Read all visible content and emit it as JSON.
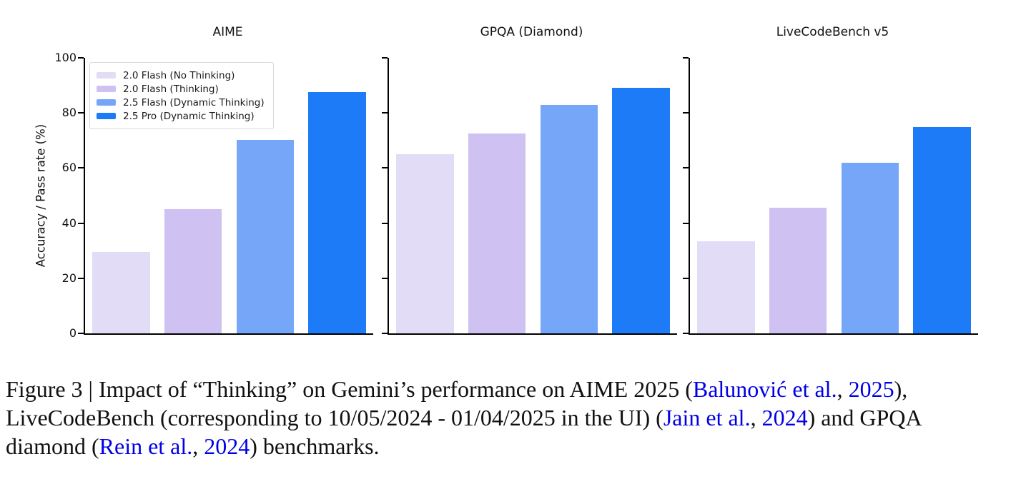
{
  "figure": {
    "ylabel": "Accuracy / Pass rate (%)",
    "legend": {
      "entries": [
        {
          "label": "2.0 Flash (No Thinking)",
          "color": "#e3dcf7"
        },
        {
          "label": "2.0 Flash (Thinking)",
          "color": "#cfc1f1"
        },
        {
          "label": "2.5 Flash (Dynamic Thinking)",
          "color": "#75a6f8"
        },
        {
          "label": "2.5 Pro (Dynamic Thinking)",
          "color": "#1e7bf7"
        }
      ]
    }
  },
  "chart_data": [
    {
      "type": "bar",
      "title": "AIME",
      "categories": [
        "2.0 Flash (No Thinking)",
        "2.0 Flash (Thinking)",
        "2.5 Flash (Dynamic Thinking)",
        "2.5 Pro (Dynamic Thinking)"
      ],
      "values": [
        29.5,
        45.0,
        70.2,
        87.5
      ],
      "colors": [
        "#e3dcf7",
        "#cfc1f1",
        "#75a6f8",
        "#1e7bf7"
      ],
      "xlabel": "",
      "ylabel": "Accuracy / Pass rate (%)",
      "ylim": [
        0,
        100
      ],
      "yticks": [
        0,
        20,
        40,
        60,
        80,
        100
      ],
      "grid": false,
      "legend_position": "upper left",
      "has_legend": true
    },
    {
      "type": "bar",
      "title": "GPQA (Diamond)",
      "categories": [
        "2.0 Flash (No Thinking)",
        "2.0 Flash (Thinking)",
        "2.5 Flash (Dynamic Thinking)",
        "2.5 Pro (Dynamic Thinking)"
      ],
      "values": [
        65.0,
        72.5,
        82.8,
        89.0
      ],
      "colors": [
        "#e3dcf7",
        "#cfc1f1",
        "#75a6f8",
        "#1e7bf7"
      ],
      "xlabel": "",
      "ylabel": "",
      "ylim": [
        0,
        100
      ],
      "yticks": [
        0,
        20,
        40,
        60,
        80,
        100
      ],
      "grid": false,
      "has_legend": false
    },
    {
      "type": "bar",
      "title": "LiveCodeBench v5",
      "categories": [
        "2.0 Flash (No Thinking)",
        "2.0 Flash (Thinking)",
        "2.5 Flash (Dynamic Thinking)",
        "2.5 Pro (Dynamic Thinking)"
      ],
      "values": [
        33.5,
        45.5,
        62.0,
        75.0
      ],
      "colors": [
        "#e3dcf7",
        "#cfc1f1",
        "#75a6f8",
        "#1e7bf7"
      ],
      "xlabel": "",
      "ylabel": "",
      "ylim": [
        0,
        100
      ],
      "yticks": [
        0,
        20,
        40,
        60,
        80,
        100
      ],
      "grid": false,
      "has_legend": false
    }
  ],
  "caption": {
    "link_color": "#0000e6",
    "lines": [
      [
        {
          "text": "Figure 3 | Impact of “Thinking” on Gemini’s performance on AIME 2025 (",
          "style": "text"
        },
        {
          "text": "Balunović et al.",
          "style": "link"
        },
        {
          "text": ", ",
          "style": "text"
        },
        {
          "text": "2025",
          "style": "link"
        },
        {
          "text": "),",
          "style": "text"
        }
      ],
      [
        {
          "text": "LiveCodeBench (corresponding to 10/05/2024 - 01/04/2025 in the UI) (",
          "style": "text"
        },
        {
          "text": "Jain et al.",
          "style": "link"
        },
        {
          "text": ", ",
          "style": "text"
        },
        {
          "text": "2024",
          "style": "link"
        },
        {
          "text": ") and GPQA",
          "style": "text"
        }
      ],
      [
        {
          "text": "diamond (",
          "style": "text"
        },
        {
          "text": "Rein et al.",
          "style": "link"
        },
        {
          "text": ", ",
          "style": "text"
        },
        {
          "text": "2024",
          "style": "link"
        },
        {
          "text": ") benchmarks.",
          "style": "text"
        }
      ]
    ]
  }
}
